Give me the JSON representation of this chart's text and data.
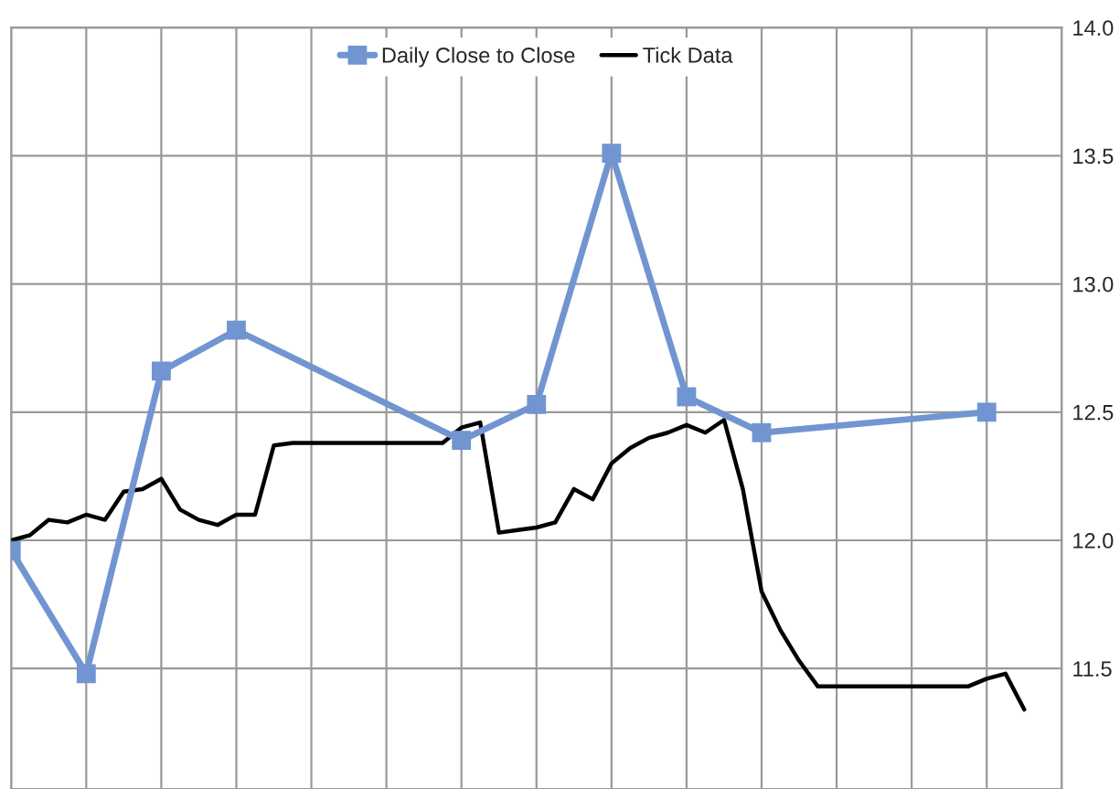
{
  "chart_data": {
    "type": "line",
    "categories": [
      null,
      null,
      null,
      null,
      null,
      null,
      null,
      null,
      null,
      null,
      null,
      null,
      null,
      null,
      null,
      null,
      null,
      null,
      null,
      null,
      null,
      null,
      null,
      null,
      null,
      null,
      null,
      null,
      null,
      null,
      null,
      null,
      null,
      null,
      null,
      null,
      null,
      null,
      null,
      null,
      null,
      null,
      null,
      null,
      null,
      null,
      null,
      null,
      null,
      null,
      null,
      null,
      null,
      null,
      null,
      null,
      null
    ],
    "series": [
      {
        "name": "Daily Close to Close",
        "color": "#7195d0",
        "marker": "square",
        "values": [
          11.96,
          null,
          null,
          null,
          11.48,
          null,
          null,
          null,
          12.66,
          null,
          null,
          null,
          12.82,
          null,
          null,
          null,
          null,
          null,
          null,
          null,
          null,
          null,
          null,
          null,
          12.39,
          null,
          null,
          null,
          12.53,
          null,
          null,
          null,
          13.51,
          null,
          null,
          null,
          12.56,
          null,
          null,
          null,
          12.42,
          null,
          null,
          null,
          null,
          null,
          null,
          null,
          null,
          null,
          null,
          null,
          12.5,
          null,
          null,
          null,
          null
        ]
      },
      {
        "name": "Tick Data",
        "color": "#000000",
        "marker": "none",
        "values": [
          12.0,
          12.02,
          12.08,
          12.07,
          12.1,
          12.08,
          12.19,
          12.2,
          12.24,
          12.12,
          12.08,
          12.06,
          12.1,
          12.1,
          12.37,
          12.38,
          12.38,
          12.38,
          12.38,
          12.38,
          12.38,
          12.38,
          12.38,
          12.38,
          12.44,
          12.46,
          12.03,
          12.04,
          12.05,
          12.07,
          12.2,
          12.16,
          12.3,
          12.36,
          12.4,
          12.42,
          12.45,
          12.42,
          12.47,
          12.2,
          11.8,
          11.65,
          11.53,
          11.43,
          11.43,
          11.43,
          11.43,
          11.43,
          11.43,
          11.43,
          11.43,
          11.43,
          11.46,
          11.48,
          11.34,
          null,
          null
        ]
      }
    ],
    "ylim": [
      11.03,
      14.0
    ],
    "yticks": [
      {
        "value": 11.5,
        "label": "11.5"
      },
      {
        "value": 12,
        "label": "12.0"
      },
      {
        "value": 12.5,
        "label": "12.5"
      },
      {
        "value": 13,
        "label": "13.0"
      },
      {
        "value": 13.5,
        "label": "13.5"
      },
      {
        "value": 14,
        "label": "14.0"
      }
    ],
    "tick_labels": "y",
    "grid": true,
    "legend": "top"
  }
}
